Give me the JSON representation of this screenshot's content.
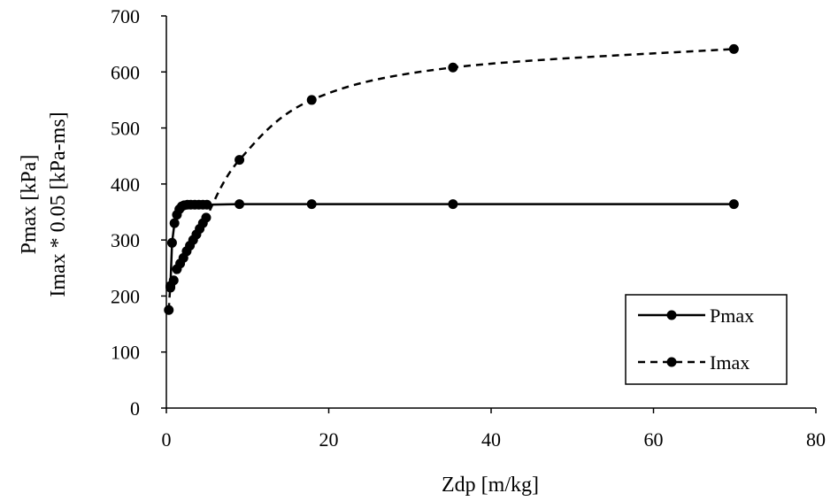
{
  "chart_data": {
    "type": "line",
    "xlabel": "Zdp [m/kg]",
    "ylabel_lines": [
      "Pmax [kPa]",
      "Imax * 0.05 [kPa-ms]"
    ],
    "xlim": [
      0,
      80
    ],
    "ylim": [
      0,
      700
    ],
    "xticks": [
      0,
      20,
      40,
      60,
      80
    ],
    "yticks": [
      0,
      100,
      200,
      300,
      400,
      500,
      600,
      700
    ],
    "grid": false,
    "legend_position": "bottom-right",
    "series": [
      {
        "name": "Pmax",
        "style": "solid",
        "color": "#000000",
        "marker": "circle",
        "x": [
          0.5,
          0.7,
          1.0,
          1.3,
          1.6,
          1.9,
          2.2,
          2.6,
          3.0,
          3.5,
          4.0,
          4.5,
          5.0,
          9.0,
          17.9,
          35.3,
          69.9
        ],
        "y": [
          218,
          295,
          330,
          345,
          355,
          360,
          362,
          363,
          363,
          363,
          363,
          363,
          363,
          364,
          364,
          364,
          364
        ]
      },
      {
        "name": "Imax",
        "style": "dashed",
        "color": "#000000",
        "marker": "circle",
        "x": [
          0.3,
          0.5,
          0.9,
          1.3,
          1.7,
          2.1,
          2.5,
          2.9,
          3.3,
          3.7,
          4.1,
          4.5,
          4.9,
          9.0,
          17.9,
          35.3,
          69.9
        ],
        "y": [
          175,
          215,
          228,
          248,
          258,
          268,
          280,
          290,
          300,
          310,
          320,
          330,
          340,
          443,
          550,
          608,
          641
        ]
      }
    ]
  }
}
